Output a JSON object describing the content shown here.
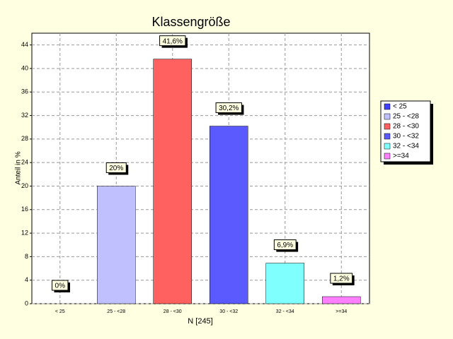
{
  "chart_data": {
    "type": "bar",
    "title": "Klassengröße",
    "y_label": "Anteil in %",
    "x_label": "N [245]",
    "categories": [
      "< 25",
      "25 - <28",
      "28 - <30",
      "30 - <32",
      "32 - <34",
      ">=34"
    ],
    "values": [
      0,
      20,
      41.6,
      30.2,
      6.9,
      1.2
    ],
    "value_labels": [
      "0%",
      "20%",
      "41,6%",
      "30,2%",
      "6,9%",
      "1,2%"
    ],
    "colors": [
      "#4040ff",
      "#c0c0ff",
      "#ff6060",
      "#5a5aff",
      "#80ffff",
      "#ff80ff"
    ],
    "ylim": [
      0,
      46
    ],
    "yticks": [
      0,
      4,
      8,
      12,
      16,
      20,
      24,
      28,
      32,
      36,
      40,
      44
    ],
    "grid": true,
    "legend": "right"
  }
}
